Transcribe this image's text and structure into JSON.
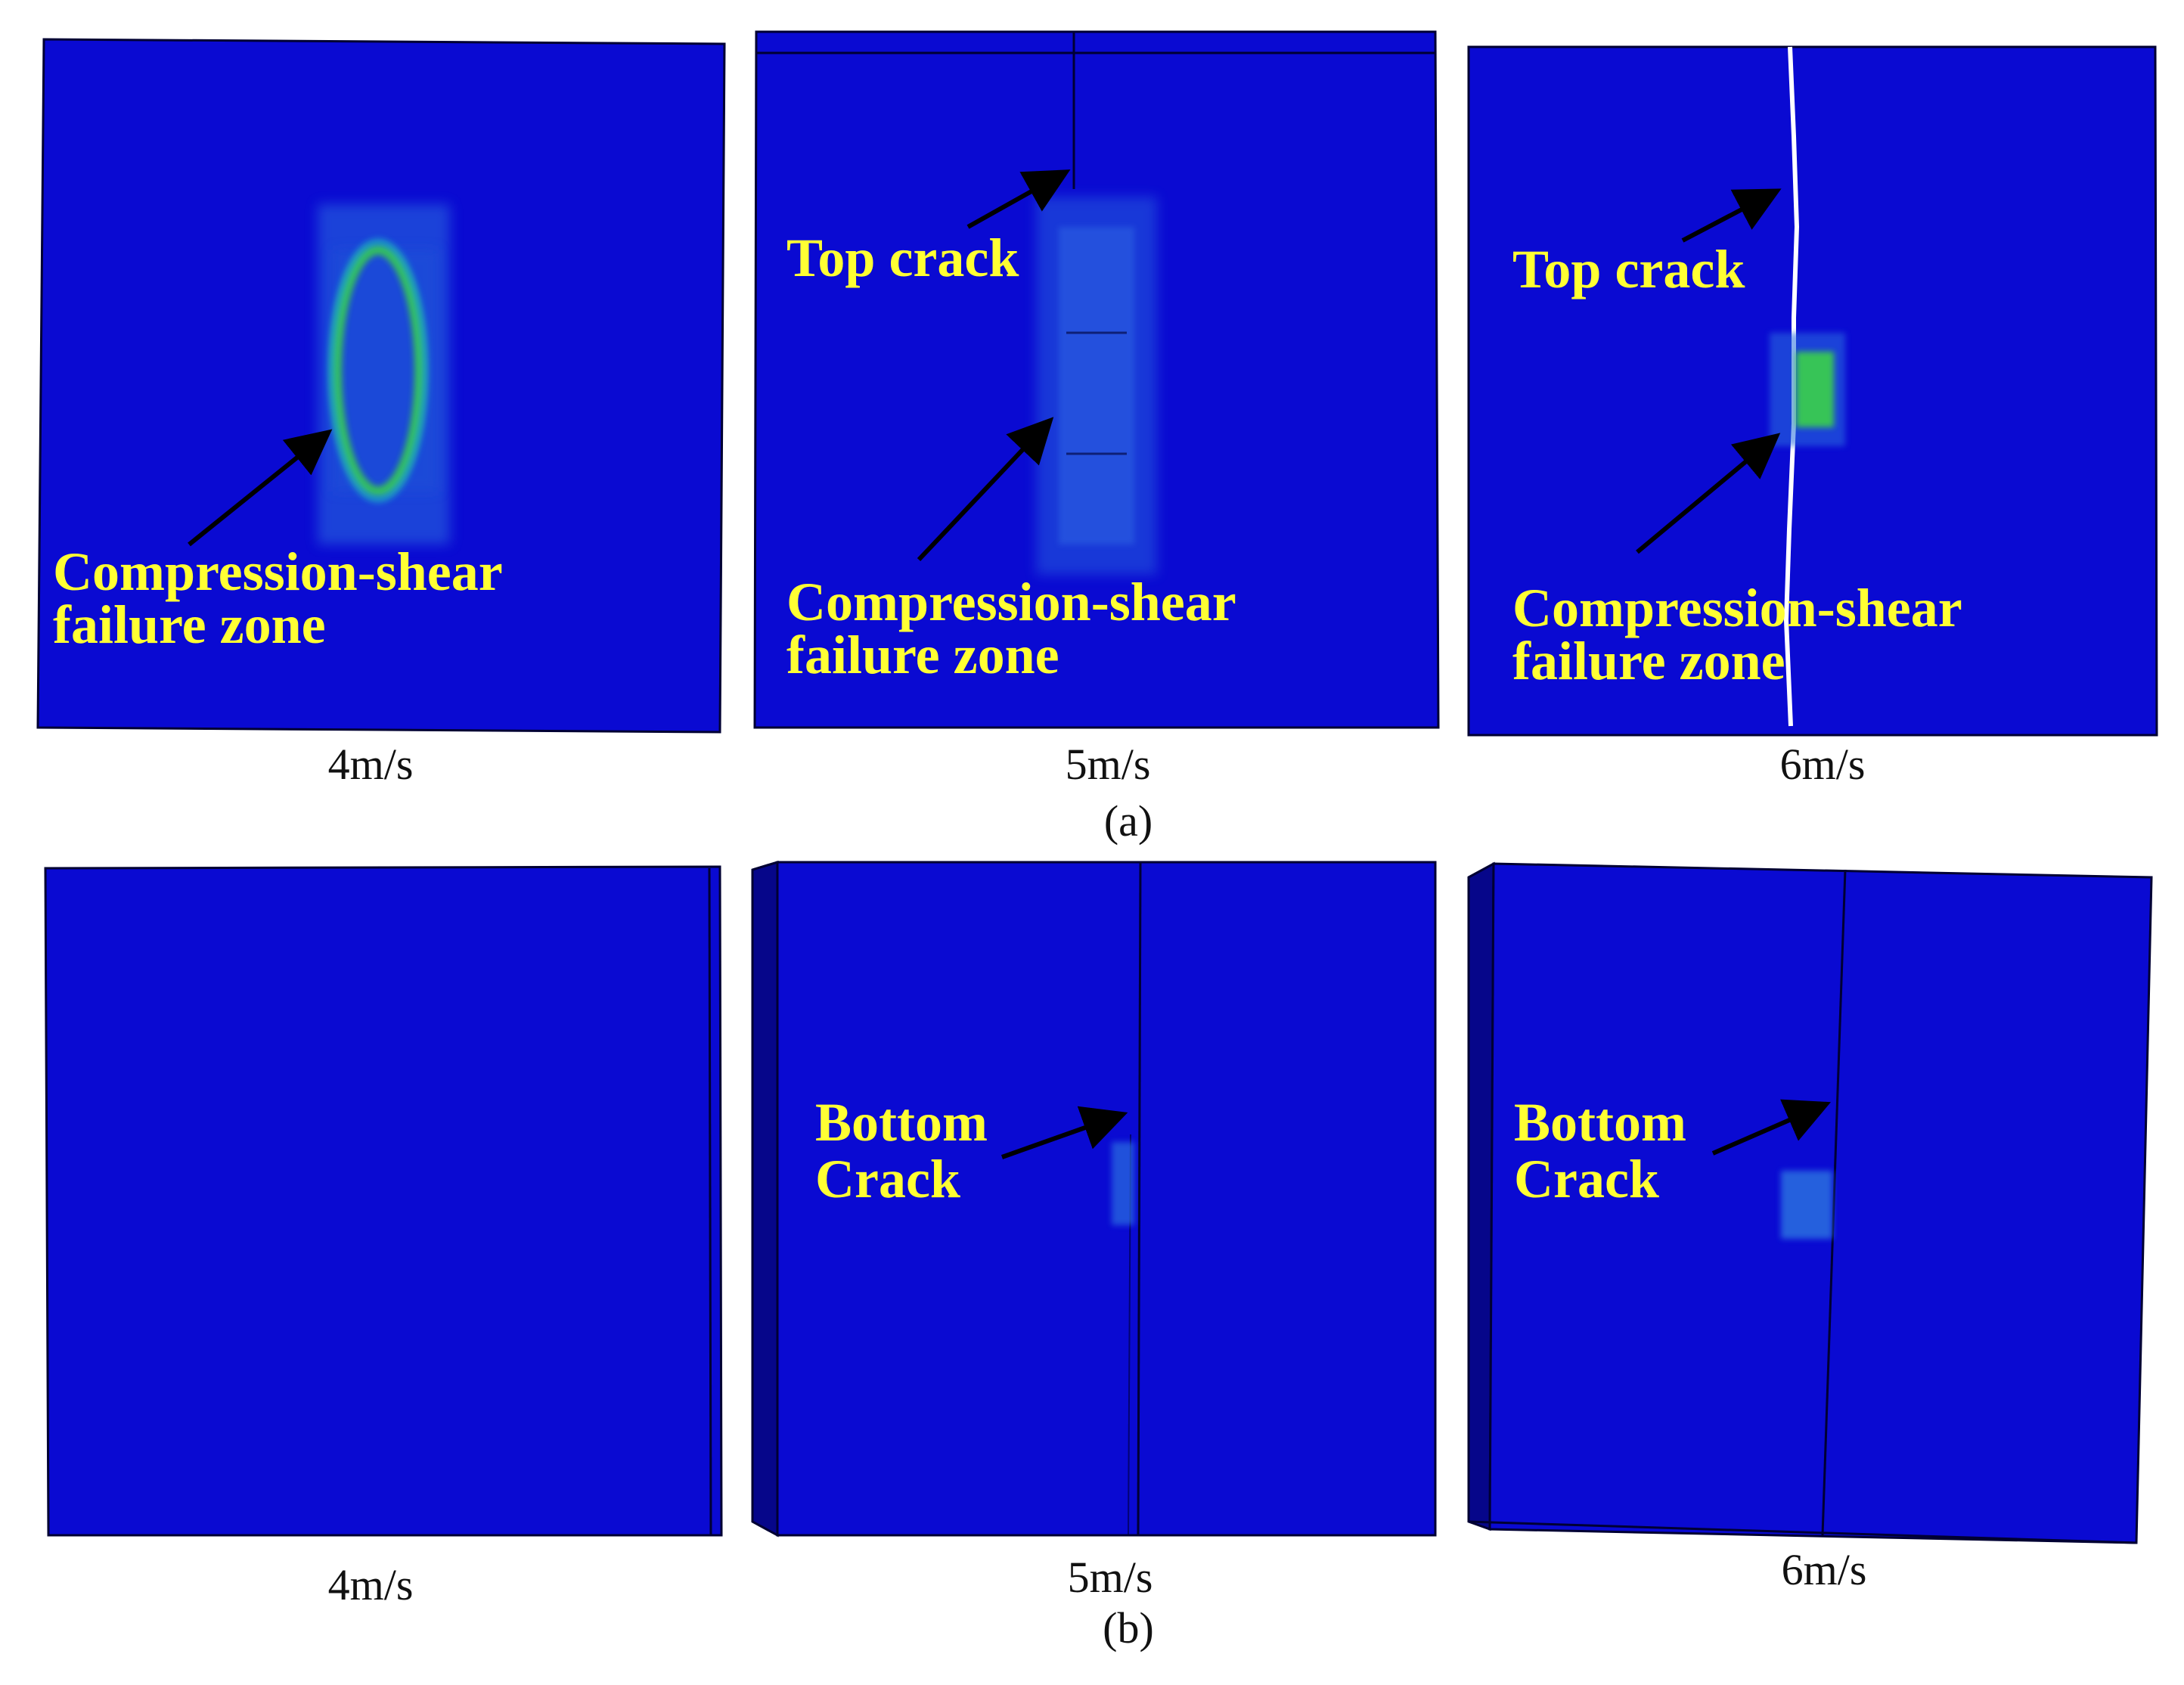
{
  "colors": {
    "plate": "#0a0ad2",
    "plate_side": "#06068a",
    "edge": "#000033",
    "annotation_text": "#ffff33",
    "arrow": "#000000",
    "crack_white": "#ffffff",
    "damage_light": "#2a6fe0",
    "damage_cyan": "#1fb8c8",
    "damage_green": "#3bd34a"
  },
  "rows": [
    {
      "label": "(a)",
      "panels": [
        {
          "speed": "4m/s",
          "annotations": [
            {
              "line1": "Compression-shear",
              "line2": "failure zone"
            }
          ]
        },
        {
          "speed": "5m/s",
          "annotations": [
            {
              "line1": "Top crack",
              "line2": ""
            },
            {
              "line1": "Compression-shear",
              "line2": "failure zone"
            }
          ]
        },
        {
          "speed": "6m/s",
          "annotations": [
            {
              "line1": "Top crack",
              "line2": ""
            },
            {
              "line1": "Compression-shear",
              "line2": "failure zone"
            }
          ]
        }
      ]
    },
    {
      "label": "(b)",
      "panels": [
        {
          "speed": "4m/s",
          "annotations": []
        },
        {
          "speed": "5m/s",
          "annotations": [
            {
              "line1": "Bottom",
              "line2": "Crack"
            }
          ]
        },
        {
          "speed": "6m/s",
          "annotations": [
            {
              "line1": "Bottom",
              "line2": "Crack"
            }
          ]
        }
      ]
    }
  ]
}
